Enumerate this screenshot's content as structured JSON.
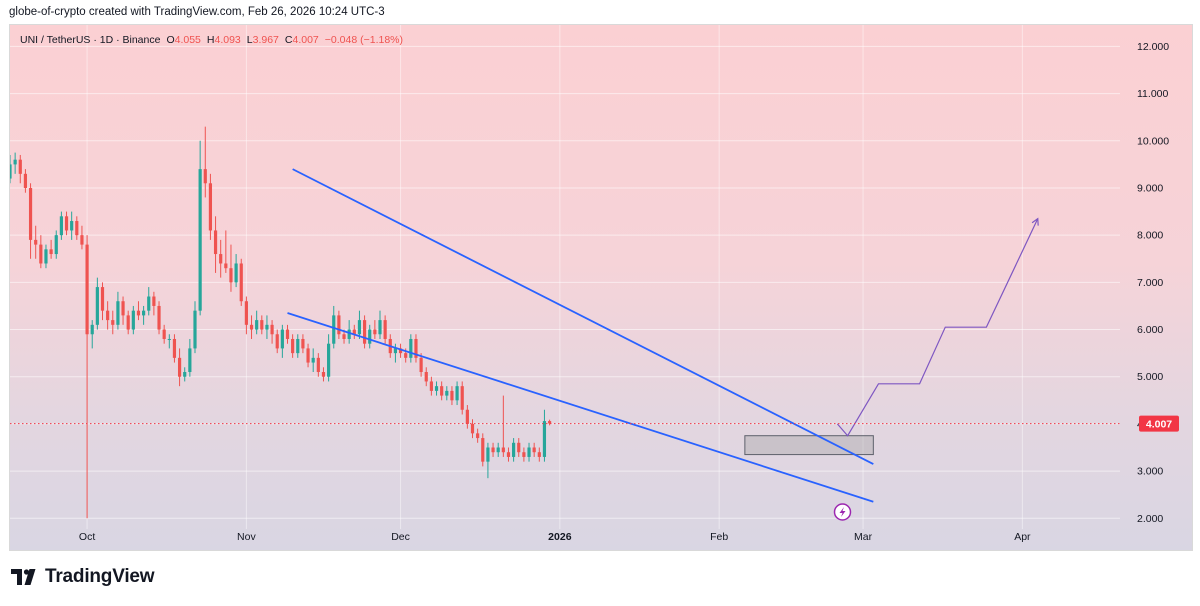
{
  "credit": "globe-of-crypto created with TradingView.com, Feb 26, 2026 10:24 UTC-3",
  "legend": {
    "symbol": "UNI / TetherUS · 1D · Binance",
    "open_label": "O",
    "open": "4.055",
    "high_label": "H",
    "high": "4.093",
    "low_label": "L",
    "low": "3.967",
    "close_label": "C",
    "close": "4.007",
    "change": "−0.048 (−1.18%)"
  },
  "brand": {
    "name": "TradingView"
  },
  "colors": {
    "up": "#26a69a",
    "down": "#ef5350",
    "trendline": "#2962ff",
    "projection": "#7e57c2",
    "price_label": "#f23645"
  },
  "chart_data": {
    "type": "candlestick",
    "title": "UNI / TetherUS · 1D · Binance",
    "y_axis": {
      "ylim": [
        1.9,
        12.2
      ],
      "ticks": [
        2,
        3,
        4,
        5,
        6,
        7,
        8,
        9,
        10,
        11,
        12
      ],
      "tick_labels": [
        "2.000",
        "3.000",
        "4.000",
        "5.000",
        "6.000",
        "7.000",
        "8.000",
        "9.000",
        "10.000",
        "11.000",
        "12.000"
      ]
    },
    "x_axis": {
      "start_date": "2025-09-16",
      "end_date": "2026-04-20",
      "ticks": [
        {
          "label": "Oct",
          "date": "2025-10-01",
          "bold": false
        },
        {
          "label": "Nov",
          "date": "2025-11-01",
          "bold": false
        },
        {
          "label": "Dec",
          "date": "2025-12-01",
          "bold": false
        },
        {
          "label": "2026",
          "date": "2026-01-01",
          "bold": true
        },
        {
          "label": "Feb",
          "date": "2026-02-01",
          "bold": false
        },
        {
          "label": "Mar",
          "date": "2026-03-01",
          "bold": false
        },
        {
          "label": "Apr",
          "date": "2026-04-01",
          "bold": false
        }
      ]
    },
    "current_price": {
      "value": 4.007,
      "label": "4.007"
    },
    "candles": {
      "start_date": "2025-09-16",
      "ohlc": [
        [
          9.2,
          9.7,
          9.1,
          9.5
        ],
        [
          9.5,
          9.75,
          9.3,
          9.6
        ],
        [
          9.6,
          9.7,
          9.1,
          9.3
        ],
        [
          9.3,
          9.4,
          8.9,
          9.0
        ],
        [
          9.0,
          9.1,
          7.5,
          7.9
        ],
        [
          7.9,
          8.2,
          7.5,
          7.8
        ],
        [
          7.8,
          8.0,
          7.3,
          7.4
        ],
        [
          7.4,
          7.8,
          7.3,
          7.7
        ],
        [
          7.7,
          7.9,
          7.5,
          7.6
        ],
        [
          7.6,
          8.1,
          7.5,
          8.0
        ],
        [
          8.0,
          8.5,
          7.9,
          8.4
        ],
        [
          8.4,
          8.5,
          8.0,
          8.1
        ],
        [
          8.1,
          8.5,
          7.9,
          8.3
        ],
        [
          8.3,
          8.4,
          7.9,
          8.0
        ],
        [
          8.0,
          8.2,
          7.7,
          7.8
        ],
        [
          7.8,
          8.0,
          2.0,
          5.9
        ],
        [
          5.9,
          6.2,
          5.6,
          6.1
        ],
        [
          6.1,
          7.1,
          6.0,
          6.9
        ],
        [
          6.9,
          7.0,
          6.2,
          6.4
        ],
        [
          6.4,
          6.6,
          6.0,
          6.2
        ],
        [
          6.2,
          6.4,
          5.9,
          6.1
        ],
        [
          6.1,
          6.8,
          6.0,
          6.6
        ],
        [
          6.6,
          6.7,
          6.1,
          6.3
        ],
        [
          6.3,
          6.4,
          5.9,
          6.0
        ],
        [
          6.0,
          6.5,
          5.9,
          6.4
        ],
        [
          6.4,
          6.6,
          6.2,
          6.3
        ],
        [
          6.3,
          6.5,
          6.1,
          6.4
        ],
        [
          6.4,
          6.9,
          6.3,
          6.7
        ],
        [
          6.7,
          6.8,
          6.3,
          6.5
        ],
        [
          6.5,
          6.6,
          5.9,
          6.0
        ],
        [
          6.0,
          6.1,
          5.7,
          5.8
        ],
        [
          5.8,
          5.9,
          5.6,
          5.8
        ],
        [
          5.8,
          5.9,
          5.3,
          5.4
        ],
        [
          5.4,
          5.6,
          4.8,
          5.0
        ],
        [
          5.0,
          5.2,
          4.9,
          5.1
        ],
        [
          5.1,
          5.8,
          5.0,
          5.6
        ],
        [
          5.6,
          6.6,
          5.5,
          6.4
        ],
        [
          6.4,
          10.0,
          6.3,
          9.4
        ],
        [
          9.4,
          10.3,
          8.8,
          9.1
        ],
        [
          9.1,
          9.3,
          7.9,
          8.1
        ],
        [
          8.1,
          8.4,
          7.2,
          7.6
        ],
        [
          7.6,
          7.9,
          7.1,
          7.4
        ],
        [
          7.4,
          8.1,
          7.2,
          7.3
        ],
        [
          7.3,
          7.8,
          6.8,
          7.0
        ],
        [
          7.0,
          7.6,
          6.9,
          7.4
        ],
        [
          7.4,
          7.5,
          6.5,
          6.6
        ],
        [
          6.6,
          6.7,
          5.9,
          6.1
        ],
        [
          6.1,
          6.3,
          5.8,
          6.0
        ],
        [
          6.0,
          6.4,
          5.9,
          6.2
        ],
        [
          6.2,
          6.3,
          5.9,
          6.0
        ],
        [
          6.0,
          6.3,
          5.8,
          6.1
        ],
        [
          6.1,
          6.2,
          5.7,
          5.9
        ],
        [
          5.9,
          6.0,
          5.5,
          5.6
        ],
        [
          5.6,
          6.1,
          5.4,
          6.0
        ],
        [
          6.0,
          6.1,
          5.7,
          5.8
        ],
        [
          5.8,
          5.9,
          5.4,
          5.5
        ],
        [
          5.5,
          5.9,
          5.4,
          5.8
        ],
        [
          5.8,
          5.9,
          5.5,
          5.6
        ],
        [
          5.6,
          5.7,
          5.2,
          5.3
        ],
        [
          5.3,
          5.6,
          5.1,
          5.4
        ],
        [
          5.4,
          5.5,
          5.0,
          5.1
        ],
        [
          5.1,
          5.2,
          4.9,
          5.0
        ],
        [
          5.0,
          5.9,
          4.9,
          5.7
        ],
        [
          5.7,
          6.5,
          5.6,
          6.3
        ],
        [
          6.3,
          6.4,
          5.8,
          5.9
        ],
        [
          5.9,
          6.0,
          5.7,
          5.8
        ],
        [
          5.8,
          6.2,
          5.7,
          6.0
        ],
        [
          6.0,
          6.1,
          5.8,
          5.9
        ],
        [
          5.9,
          6.4,
          5.8,
          6.2
        ],
        [
          6.2,
          6.3,
          5.6,
          5.7
        ],
        [
          5.7,
          6.1,
          5.6,
          6.0
        ],
        [
          6.0,
          6.2,
          5.8,
          5.9
        ],
        [
          5.9,
          6.4,
          5.8,
          6.2
        ],
        [
          6.2,
          6.3,
          5.7,
          5.8
        ],
        [
          5.8,
          5.9,
          5.4,
          5.5
        ],
        [
          5.5,
          5.7,
          5.3,
          5.6
        ],
        [
          5.6,
          5.7,
          5.4,
          5.5
        ],
        [
          5.5,
          5.6,
          5.3,
          5.4
        ],
        [
          5.4,
          5.9,
          5.3,
          5.8
        ],
        [
          5.8,
          5.9,
          5.3,
          5.4
        ],
        [
          5.4,
          5.5,
          5.0,
          5.1
        ],
        [
          5.1,
          5.2,
          4.8,
          4.9
        ],
        [
          4.9,
          5.0,
          4.6,
          4.7
        ],
        [
          4.7,
          4.9,
          4.6,
          4.8
        ],
        [
          4.8,
          4.9,
          4.5,
          4.6
        ],
        [
          4.6,
          4.8,
          4.5,
          4.7
        ],
        [
          4.7,
          4.8,
          4.4,
          4.5
        ],
        [
          4.5,
          4.9,
          4.4,
          4.8
        ],
        [
          4.8,
          4.9,
          4.2,
          4.3
        ],
        [
          4.3,
          4.4,
          3.9,
          4.0
        ],
        [
          4.0,
          4.1,
          3.7,
          3.8
        ],
        [
          3.8,
          3.9,
          3.6,
          3.7
        ],
        [
          3.7,
          3.8,
          3.1,
          3.2
        ],
        [
          3.2,
          3.6,
          2.85,
          3.5
        ],
        [
          3.5,
          3.6,
          3.3,
          3.4
        ],
        [
          3.4,
          3.6,
          3.3,
          3.5
        ],
        [
          3.5,
          4.6,
          3.3,
          3.4
        ],
        [
          3.4,
          3.5,
          3.2,
          3.3
        ],
        [
          3.3,
          3.7,
          3.2,
          3.6
        ],
        [
          3.6,
          3.7,
          3.3,
          3.4
        ],
        [
          3.4,
          3.5,
          3.2,
          3.3
        ],
        [
          3.3,
          3.6,
          3.2,
          3.5
        ],
        [
          3.5,
          3.6,
          3.3,
          3.4
        ],
        [
          3.4,
          3.5,
          3.2,
          3.3
        ],
        [
          3.3,
          4.3,
          3.2,
          4.06
        ],
        [
          4.06,
          4.09,
          3.97,
          4.01
        ]
      ]
    },
    "annotations": [
      {
        "type": "trendline",
        "name": "falling-wedge-upper",
        "from": {
          "date": "2025-11-10",
          "price": 9.4
        },
        "to": {
          "date": "2026-03-03",
          "price": 3.15
        }
      },
      {
        "type": "trendline",
        "name": "falling-wedge-lower",
        "from": {
          "date": "2025-11-09",
          "price": 6.35
        },
        "to": {
          "date": "2026-03-03",
          "price": 2.35
        }
      },
      {
        "type": "box",
        "name": "consolidation-box",
        "from": {
          "date": "2026-02-06",
          "price": 3.75
        },
        "to": {
          "date": "2026-03-03",
          "price": 3.35
        }
      },
      {
        "type": "path",
        "name": "projection-path",
        "points": [
          {
            "date": "2026-02-24",
            "price": 4.0
          },
          {
            "date": "2026-02-26",
            "price": 3.75
          },
          {
            "date": "2026-03-04",
            "price": 4.85
          },
          {
            "date": "2026-03-12",
            "price": 4.85
          },
          {
            "date": "2026-03-17",
            "price": 6.05
          },
          {
            "date": "2026-03-25",
            "price": 6.05
          },
          {
            "date": "2026-04-04",
            "price": 8.35
          }
        ]
      }
    ]
  }
}
